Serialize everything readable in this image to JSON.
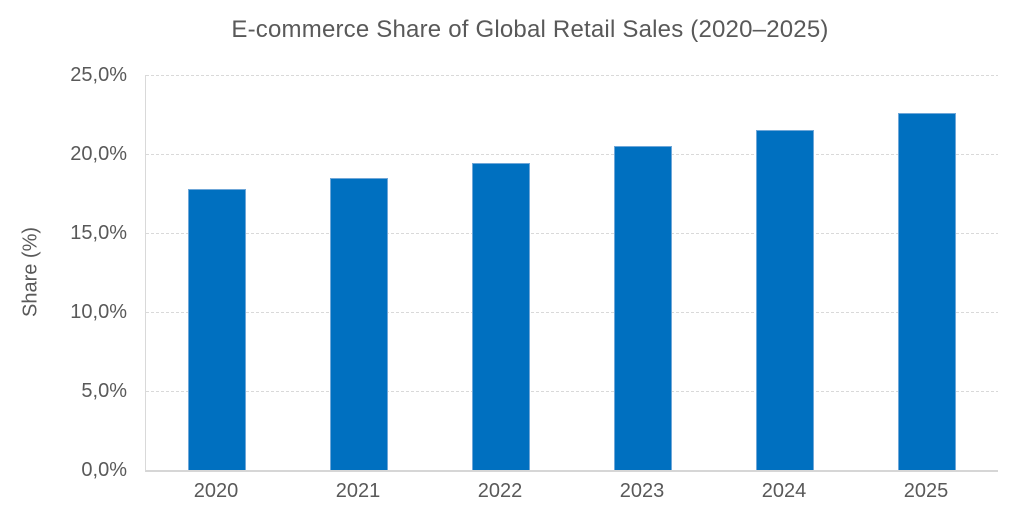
{
  "chart_data": {
    "type": "bar",
    "title": "E-commerce Share of Global Retail Sales (2020–2025)",
    "xlabel": "",
    "ylabel": "Share (%)",
    "categories": [
      "2020",
      "2021",
      "2022",
      "2023",
      "2024",
      "2025"
    ],
    "values": [
      17.8,
      18.5,
      19.4,
      20.5,
      21.5,
      22.6
    ],
    "ylim": [
      0,
      25
    ],
    "ytick_labels": [
      "0,0%",
      "5,0%",
      "10,0%",
      "15,0%",
      "20,0%",
      "25,0%"
    ],
    "grid": true,
    "gridline_style": "dashed",
    "legend": "none",
    "colors": {
      "bar_fill": "#0070c0",
      "bar_border": "#6fa7d8",
      "text": "#595959",
      "gridline": "#d9d9d9",
      "background": "#ffffff"
    }
  }
}
